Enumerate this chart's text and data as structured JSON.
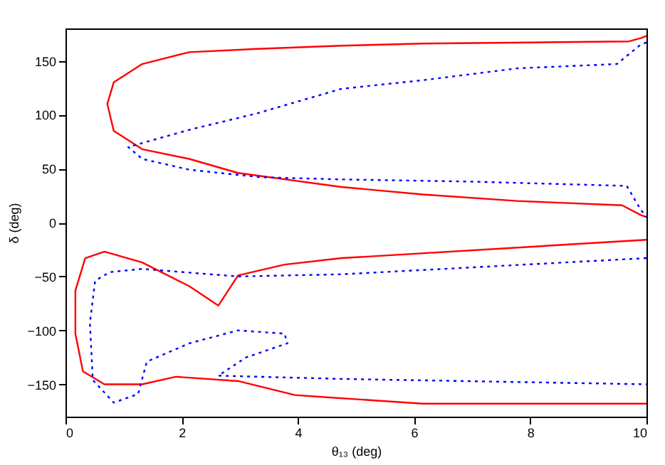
{
  "chart_data": {
    "type": "line",
    "xlabel": "θ₁₃ (deg)",
    "ylabel": "δ (deg)",
    "xlim": [
      0,
      10
    ],
    "ylim": [
      -180,
      180
    ],
    "xticks": [
      0,
      2,
      4,
      6,
      8,
      10
    ],
    "yticks": [
      -150,
      -100,
      -50,
      0,
      50,
      100,
      150
    ],
    "grid": false,
    "marker": "none",
    "series": [
      {
        "color": "#ff0000",
        "line_style": "solid",
        "x": [
          10,
          9.9,
          9.7,
          8,
          6.15,
          4.75,
          3.3,
          2.13,
          1.32,
          0.83,
          0.72,
          0.83,
          1.32,
          2.13,
          2.97,
          4.75,
          6.15,
          7.77,
          9.58,
          9.9,
          10
        ],
        "values": [
          173,
          171,
          168,
          167,
          166,
          164,
          161,
          158,
          147,
          130,
          110,
          85,
          68,
          59,
          46,
          33,
          26,
          20,
          16,
          7,
          5
        ]
      },
      {
        "color": "#0000ff",
        "line_style": "dotted",
        "x": [
          10,
          9.9,
          9.49,
          7.77,
          6.15,
          4.75,
          3.28,
          2.13,
          1.08,
          1.32,
          2.13,
          3.36,
          4.75,
          6.96,
          9.66,
          9.9,
          10
        ],
        "values": [
          167,
          165,
          147,
          143,
          132,
          124,
          101,
          86,
          70,
          59,
          49,
          42,
          40,
          38,
          34,
          12,
          5
        ]
      },
      {
        "color": "#ff0000",
        "line_style": "solid",
        "x": [
          10,
          4.75,
          3.77,
          2.97,
          2.63,
          2.13,
          1.32,
          0.67,
          0.34,
          0.17,
          0.17,
          0.3,
          0.67,
          1.32,
          1.9,
          2.97,
          3.95,
          4.5,
          6.15,
          8,
          10
        ],
        "values": [
          -16,
          -33,
          -39,
          -49,
          -77,
          -59,
          -37,
          -27,
          -33,
          -63,
          -103,
          -138,
          -150,
          -150,
          -143,
          -147,
          -160,
          -162,
          -168,
          -168,
          -168
        ]
      },
      {
        "color": "#0000ff",
        "line_style": "dotted",
        "x": [
          10,
          4.75,
          2.97,
          1.32,
          0.76,
          0.51,
          0.42,
          0.47,
          0.83,
          1.25,
          1.4,
          2.13,
          2.97,
          3.77,
          3.82,
          3.11,
          2.63,
          4.75,
          10
        ],
        "values": [
          -33,
          -48,
          -50,
          -43,
          -46,
          -54,
          -93,
          -146,
          -167,
          -159,
          -129,
          -112,
          -100,
          -103,
          -112,
          -125,
          -142,
          -145,
          -150
        ]
      }
    ]
  }
}
